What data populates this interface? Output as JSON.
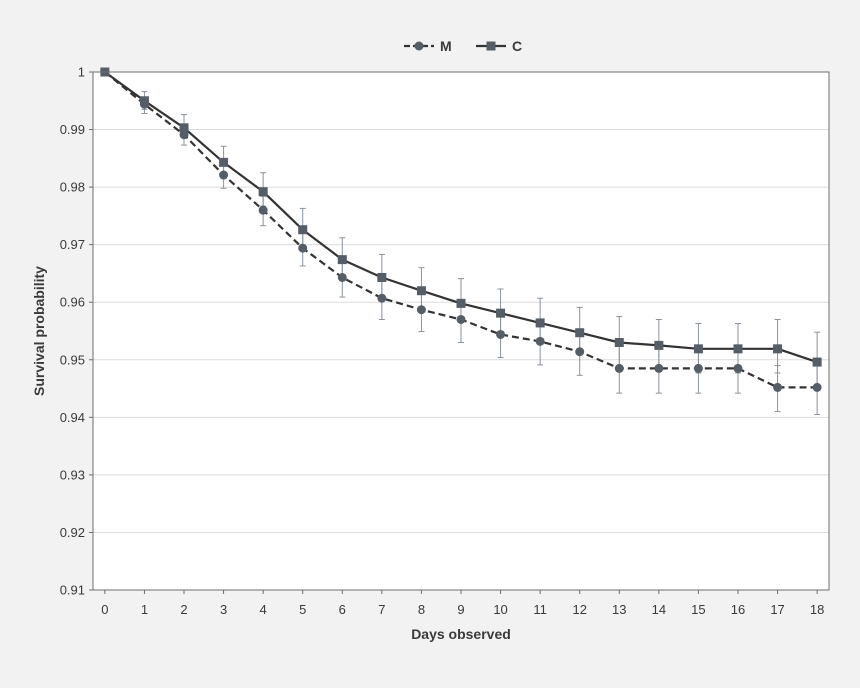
{
  "chart_data": {
    "type": "line",
    "title": "",
    "xlabel": "Days observed",
    "ylabel": "Survival probability",
    "x": [
      0,
      1,
      2,
      3,
      4,
      5,
      6,
      7,
      8,
      9,
      10,
      11,
      12,
      13,
      14,
      15,
      16,
      17,
      18
    ],
    "xlim": [
      -0.3,
      18.3
    ],
    "ylim": [
      0.91,
      1.0
    ],
    "yticks": [
      "1",
      "0.99",
      "0.98",
      "0.97",
      "0.96",
      "0.95",
      "0.94",
      "0.93",
      "0.92",
      "0.91"
    ],
    "grid": "horizontal",
    "legend_position": "top-center",
    "series": [
      {
        "name": "M",
        "line_style": "dashed",
        "marker": "circle",
        "color": "#555d66",
        "values": [
          1.0,
          0.9944,
          0.9891,
          0.9821,
          0.976,
          0.9694,
          0.9643,
          0.9607,
          0.9587,
          0.957,
          0.9544,
          0.9532,
          0.9514,
          0.9485,
          0.9485,
          0.9485,
          0.9485,
          0.9452,
          0.9452
        ],
        "err_lower": [
          1.0,
          0.9928,
          0.9873,
          0.9798,
          0.9733,
          0.9663,
          0.9609,
          0.957,
          0.9549,
          0.953,
          0.9504,
          0.9491,
          0.9473,
          0.9442,
          0.9442,
          0.9442,
          0.9442,
          0.941,
          0.9405
        ],
        "err_upper": [
          1.0,
          0.9955,
          0.9905,
          0.984,
          0.9784,
          0.9722,
          0.9675,
          0.9641,
          0.9622,
          0.9605,
          0.958,
          0.9568,
          0.955,
          0.9525,
          0.9525,
          0.9525,
          0.9525,
          0.949,
          0.949
        ]
      },
      {
        "name": "C",
        "line_style": "solid",
        "marker": "square",
        "color": "#555d66",
        "values": [
          1.0,
          0.995,
          0.9903,
          0.9843,
          0.9792,
          0.9726,
          0.9674,
          0.9643,
          0.962,
          0.9598,
          0.9581,
          0.9564,
          0.9547,
          0.953,
          0.9525,
          0.9519,
          0.9519,
          0.9519,
          0.9496
        ],
        "err_lower": [
          1.0,
          0.9935,
          0.9888,
          0.9822,
          0.9767,
          0.9698,
          0.9643,
          0.961,
          0.9588,
          0.9565,
          0.9546,
          0.9527,
          0.951,
          0.949,
          0.9485,
          0.9477,
          0.9477,
          0.9477,
          0.9452
        ],
        "err_upper": [
          1.0,
          0.9966,
          0.9926,
          0.9871,
          0.9825,
          0.9763,
          0.9712,
          0.9683,
          0.966,
          0.9641,
          0.9623,
          0.9607,
          0.9591,
          0.9575,
          0.957,
          0.9563,
          0.9563,
          0.957,
          0.9548
        ]
      }
    ]
  }
}
